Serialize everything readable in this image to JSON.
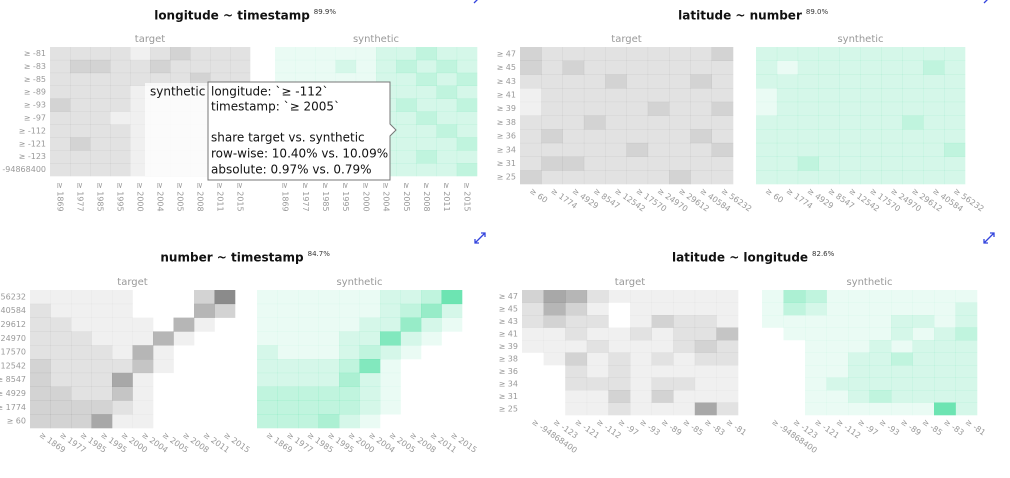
{
  "target_color": "#6e6e6e",
  "synthetic_color": "#2fd992",
  "panels": [
    {
      "title": "longitude ~ timestamp",
      "score": "89.9%",
      "target_label": "target",
      "synthetic_label": "synthetic",
      "y_labels": [
        "≥ -81",
        "≥ -83",
        "≥ -85",
        "≥ -89",
        "≥ -93",
        "≥ -97",
        "≥ -112",
        "≥ -121",
        "≥ -123",
        "≥ -94868400"
      ],
      "x_labels": [
        "≥ 1869",
        "≥ 1977",
        "≥ 1985",
        "≥ 1995",
        "≥ 2000",
        "≥ 2004",
        "≥ 2005",
        "≥ 2008",
        "≥ 2011",
        "≥ 2015"
      ],
      "target": [
        [
          2,
          2,
          2,
          2,
          1,
          2,
          3,
          2,
          2,
          2
        ],
        [
          2,
          3,
          3,
          2,
          2,
          3,
          2,
          2,
          2,
          2
        ],
        [
          2,
          2,
          2,
          2,
          2,
          2,
          2,
          3,
          2,
          2
        ],
        [
          2,
          2,
          2,
          2,
          1,
          1,
          1,
          1,
          2,
          2
        ],
        [
          3,
          2,
          2,
          2,
          1,
          1,
          1,
          1,
          1,
          1
        ],
        [
          2,
          2,
          2,
          1,
          1,
          1,
          1,
          1,
          1,
          1
        ],
        [
          2,
          2,
          2,
          2,
          1,
          1,
          1,
          1,
          1,
          1
        ],
        [
          2,
          3,
          2,
          2,
          1,
          1,
          1,
          1,
          1,
          1
        ],
        [
          2,
          2,
          2,
          2,
          1,
          1,
          1,
          1,
          1,
          1
        ],
        [
          2,
          2,
          2,
          2,
          1,
          1,
          1,
          1,
          1,
          1
        ]
      ],
      "synthetic": [
        [
          1,
          1,
          1,
          1,
          1,
          2,
          2,
          3,
          2,
          2
        ],
        [
          1,
          1,
          1,
          2,
          1,
          2,
          3,
          2,
          3,
          2
        ],
        [
          1,
          1,
          1,
          1,
          1,
          2,
          2,
          3,
          2,
          3
        ],
        [
          1,
          1,
          1,
          1,
          2,
          2,
          2,
          2,
          3,
          2
        ],
        [
          1,
          1,
          1,
          1,
          1,
          2,
          3,
          2,
          2,
          3
        ],
        [
          1,
          1,
          1,
          1,
          1,
          2,
          2,
          3,
          2,
          2
        ],
        [
          1,
          1,
          1,
          1,
          2,
          2,
          2,
          2,
          3,
          2
        ],
        [
          1,
          1,
          1,
          1,
          1,
          2,
          2,
          2,
          2,
          3
        ],
        [
          1,
          1,
          1,
          1,
          1,
          2,
          2,
          3,
          2,
          2
        ],
        [
          1,
          1,
          1,
          1,
          1,
          2,
          2,
          2,
          2,
          3
        ]
      ]
    },
    {
      "title": "latitude ~ number",
      "score": "89.0%",
      "target_label": "target",
      "synthetic_label": "synthetic",
      "y_labels": [
        "≥ 47",
        "≥ 45",
        "≥ 43",
        "≥ 41",
        "≥ 39",
        "≥ 38",
        "≥ 36",
        "≥ 34",
        "≥ 31",
        "≥ 25"
      ],
      "x_labels": [
        "≥ 60",
        "≥ 1774",
        "≥ 4929",
        "≥ 8547",
        "≥ 12542",
        "≥ 17570",
        "≥ 24970",
        "≥ 29612",
        "≥ 40584",
        "≥ 56232"
      ],
      "target": [
        [
          3,
          2,
          2,
          2,
          2,
          2,
          2,
          2,
          2,
          3
        ],
        [
          3,
          2,
          3,
          2,
          2,
          2,
          2,
          2,
          2,
          2
        ],
        [
          2,
          2,
          2,
          2,
          3,
          2,
          2,
          2,
          3,
          2
        ],
        [
          1,
          2,
          2,
          2,
          2,
          2,
          2,
          2,
          2,
          2
        ],
        [
          1,
          2,
          2,
          2,
          2,
          2,
          3,
          2,
          2,
          3
        ],
        [
          2,
          2,
          2,
          3,
          2,
          2,
          2,
          2,
          2,
          2
        ],
        [
          2,
          3,
          2,
          2,
          2,
          2,
          2,
          2,
          3,
          2
        ],
        [
          2,
          2,
          2,
          2,
          2,
          3,
          2,
          2,
          2,
          3
        ],
        [
          2,
          3,
          3,
          2,
          2,
          2,
          2,
          2,
          2,
          2
        ],
        [
          3,
          2,
          2,
          2,
          2,
          2,
          2,
          3,
          2,
          2
        ]
      ],
      "synthetic": [
        [
          2,
          2,
          2,
          2,
          2,
          2,
          2,
          2,
          2,
          2
        ],
        [
          2,
          1,
          2,
          2,
          2,
          2,
          2,
          2,
          3,
          2
        ],
        [
          2,
          2,
          2,
          2,
          2,
          2,
          2,
          2,
          2,
          2
        ],
        [
          1,
          2,
          2,
          2,
          2,
          2,
          2,
          2,
          2,
          2
        ],
        [
          1,
          2,
          2,
          2,
          2,
          2,
          2,
          2,
          2,
          2
        ],
        [
          2,
          2,
          2,
          2,
          2,
          2,
          2,
          3,
          2,
          2
        ],
        [
          2,
          2,
          2,
          2,
          2,
          2,
          2,
          2,
          2,
          2
        ],
        [
          2,
          2,
          2,
          2,
          2,
          2,
          2,
          2,
          2,
          3
        ],
        [
          2,
          2,
          3,
          2,
          2,
          2,
          2,
          2,
          2,
          2
        ],
        [
          2,
          2,
          2,
          2,
          2,
          2,
          2,
          2,
          2,
          2
        ]
      ]
    },
    {
      "title": "number ~ timestamp",
      "score": "84.7%",
      "target_label": "target",
      "synthetic_label": "synthetic",
      "y_labels": [
        "≥ 56232",
        "≥ 40584",
        "≥ 29612",
        "≥ 24970",
        "≥ 17570",
        "≥ 12542",
        "≥ 8547",
        "≥ 4929",
        "≥ 1774",
        "≥ 60"
      ],
      "x_labels": [
        "≥ 1869",
        "≥ 1977",
        "≥ 1985",
        "≥ 1995",
        "≥ 2000",
        "≥ 2004",
        "≥ 2005",
        "≥ 2008",
        "≥ 2011",
        "≥ 2015"
      ],
      "target": [
        [
          1,
          1,
          1,
          1,
          1,
          0,
          0,
          0,
          3,
          8
        ],
        [
          2,
          1,
          1,
          1,
          1,
          0,
          0,
          0,
          5,
          3
        ],
        [
          2,
          2,
          1,
          1,
          1,
          1,
          0,
          5,
          1,
          0
        ],
        [
          2,
          2,
          2,
          1,
          1,
          1,
          5,
          1,
          0,
          0
        ],
        [
          2,
          2,
          2,
          2,
          1,
          5,
          1,
          0,
          0,
          0
        ],
        [
          3,
          2,
          2,
          2,
          2,
          4,
          1,
          0,
          0,
          0
        ],
        [
          3,
          2,
          2,
          2,
          6,
          1,
          0,
          0,
          0,
          0
        ],
        [
          3,
          3,
          2,
          2,
          4,
          1,
          0,
          0,
          0,
          0
        ],
        [
          3,
          3,
          3,
          3,
          2,
          1,
          0,
          0,
          0,
          0
        ],
        [
          3,
          3,
          3,
          6,
          1,
          1,
          0,
          0,
          0,
          0
        ]
      ],
      "synthetic": [
        [
          1,
          1,
          1,
          1,
          1,
          1,
          2,
          2,
          3,
          7
        ],
        [
          1,
          1,
          1,
          1,
          1,
          1,
          2,
          3,
          5,
          2
        ],
        [
          1,
          1,
          1,
          1,
          1,
          2,
          2,
          5,
          2,
          1
        ],
        [
          1,
          1,
          1,
          1,
          2,
          2,
          6,
          2,
          1,
          0
        ],
        [
          2,
          1,
          1,
          1,
          2,
          3,
          2,
          1,
          0,
          0
        ],
        [
          2,
          2,
          2,
          2,
          3,
          6,
          1,
          0,
          0,
          0
        ],
        [
          2,
          2,
          2,
          2,
          4,
          2,
          1,
          0,
          0,
          0
        ],
        [
          3,
          3,
          3,
          3,
          3,
          2,
          1,
          0,
          0,
          0
        ],
        [
          3,
          3,
          3,
          3,
          3,
          2,
          1,
          0,
          0,
          0
        ],
        [
          3,
          3,
          3,
          4,
          2,
          1,
          0,
          0,
          0,
          0
        ]
      ]
    },
    {
      "title": "latitude ~ longitude",
      "score": "82.6%",
      "target_label": "target",
      "synthetic_label": "synthetic",
      "y_labels": [
        "≥ 47",
        "≥ 45",
        "≥ 43",
        "≥ 41",
        "≥ 39",
        "≥ 38",
        "≥ 36",
        "≥ 34",
        "≥ 31",
        "≥ 25"
      ],
      "x_labels": [
        "≥ -94868400",
        "≥ -123",
        "≥ -121",
        "≥ -112",
        "≥ -97",
        "≥ -93",
        "≥ -89",
        "≥ -85",
        "≥ -83",
        "≥ -81"
      ],
      "target": [
        [
          3,
          6,
          5,
          2,
          1,
          1,
          1,
          1,
          1,
          1
        ],
        [
          2,
          5,
          3,
          1,
          0,
          1,
          1,
          1,
          1,
          1
        ],
        [
          2,
          3,
          2,
          2,
          0,
          1,
          3,
          2,
          2,
          1
        ],
        [
          1,
          1,
          2,
          1,
          1,
          2,
          1,
          2,
          2,
          4
        ],
        [
          1,
          1,
          1,
          2,
          1,
          1,
          1,
          2,
          3,
          2
        ],
        [
          0,
          1,
          3,
          1,
          2,
          1,
          2,
          1,
          2,
          2
        ],
        [
          0,
          0,
          2,
          1,
          2,
          1,
          1,
          1,
          1,
          1
        ],
        [
          0,
          0,
          2,
          2,
          2,
          1,
          2,
          2,
          1,
          1
        ],
        [
          0,
          0,
          1,
          1,
          3,
          1,
          3,
          1,
          1,
          1
        ],
        [
          0,
          0,
          1,
          1,
          2,
          1,
          1,
          1,
          6,
          2
        ]
      ],
      "synthetic": [
        [
          1,
          4,
          3,
          1,
          1,
          1,
          1,
          1,
          1,
          1
        ],
        [
          1,
          3,
          2,
          1,
          1,
          1,
          1,
          1,
          1,
          2
        ],
        [
          1,
          1,
          1,
          1,
          1,
          1,
          2,
          2,
          1,
          2
        ],
        [
          0,
          1,
          1,
          1,
          1,
          1,
          2,
          1,
          2,
          3
        ],
        [
          0,
          0,
          1,
          1,
          1,
          2,
          1,
          2,
          2,
          2
        ],
        [
          0,
          0,
          1,
          1,
          2,
          2,
          3,
          2,
          2,
          2
        ],
        [
          0,
          0,
          1,
          1,
          2,
          2,
          2,
          2,
          2,
          2
        ],
        [
          0,
          0,
          1,
          2,
          2,
          2,
          2,
          2,
          2,
          2
        ],
        [
          0,
          0,
          1,
          1,
          2,
          3,
          2,
          2,
          2,
          2
        ],
        [
          0,
          0,
          1,
          1,
          1,
          1,
          1,
          1,
          7,
          2
        ]
      ]
    }
  ],
  "hover_label": "synthetic",
  "tooltip": [
    "longitude: `≥ -112`",
    "timestamp: `≥ 2005`",
    "share target vs. synthetic",
    "row-wise: 10.40% vs. 10.09%",
    "absolute: 0.97% vs. 0.79%"
  ]
}
